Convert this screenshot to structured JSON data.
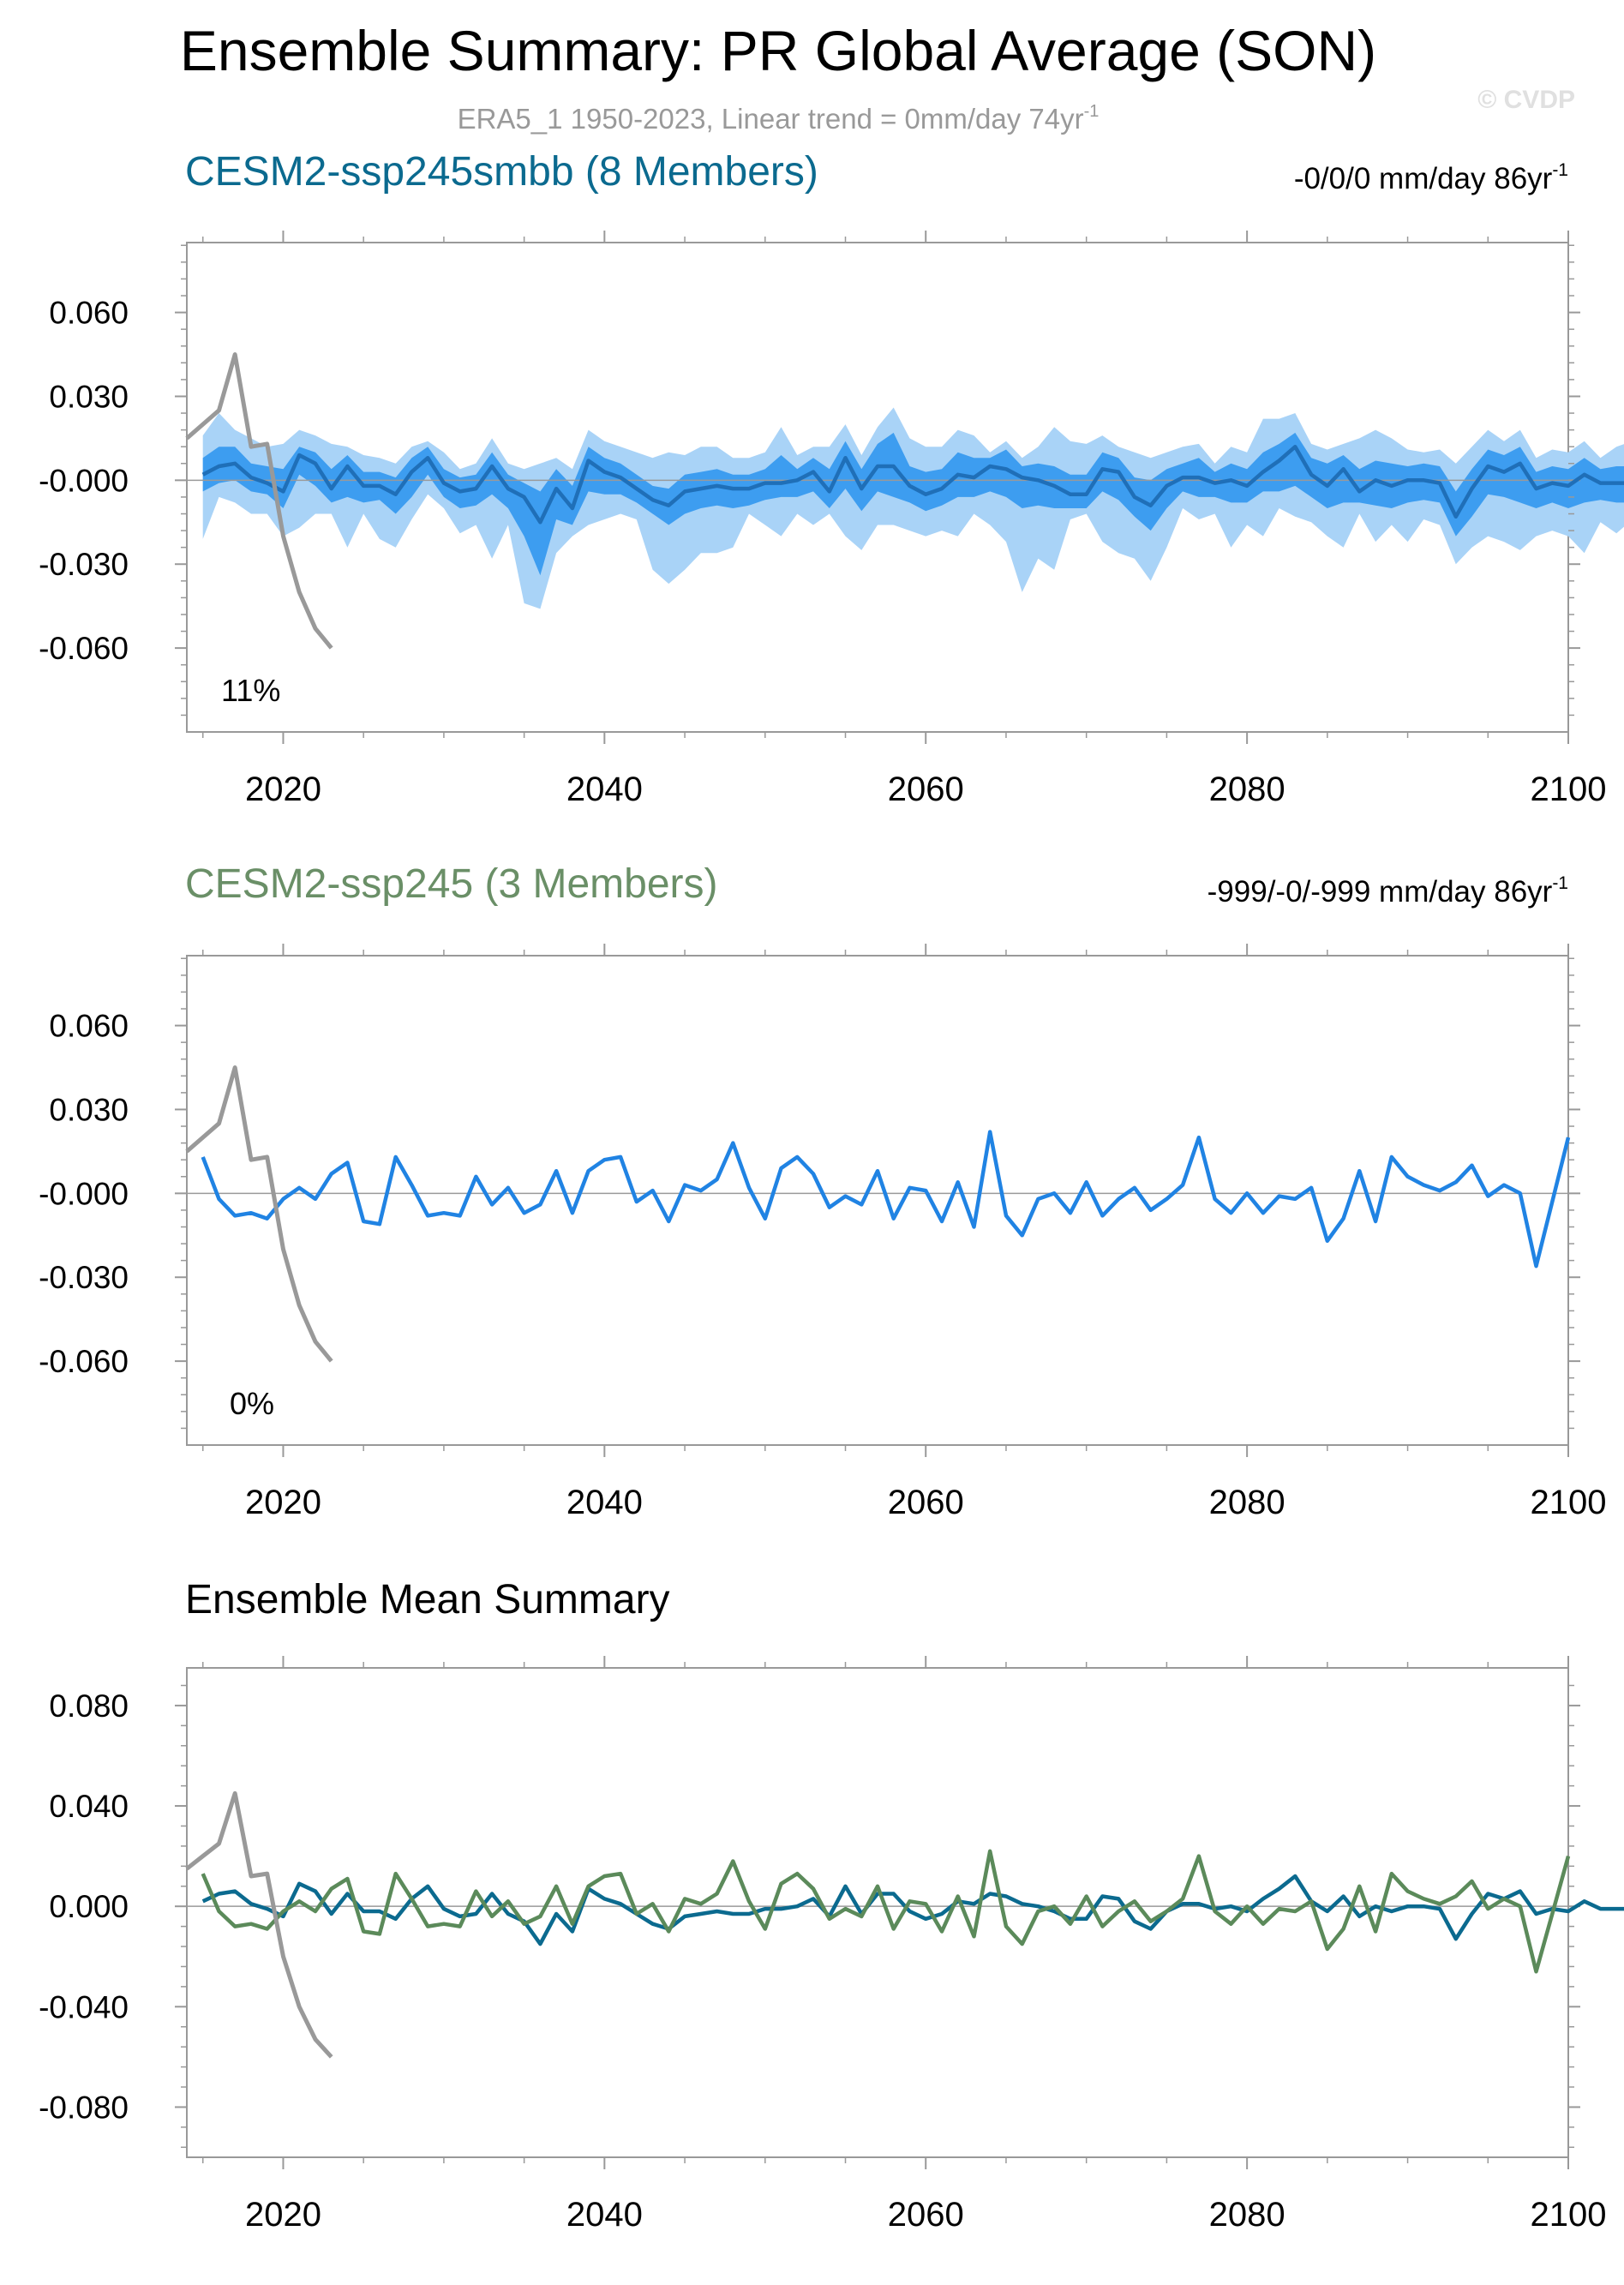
{
  "title": "Ensemble Summary: PR Global Average (SON)",
  "subtitle": "ERA5_1 1950-2023, Linear trend = 0mm/day 74yr",
  "subtitle_sup": "-1",
  "watermark": "© CVDP",
  "colors": {
    "obs": "#999999",
    "smbb": "#0b6a8f",
    "ssp245_title": "#6a8f67",
    "ssp245_line": "#5b8a5a",
    "band_outer": "#a9d3f7",
    "band_inner": "#3d9df0",
    "blue_line": "#2083e3",
    "zero_line": "#9a9a9a"
  },
  "chart_data": [
    {
      "id": "panel1",
      "type": "area",
      "title": "CESM2-ssp245smbb (8 Members)",
      "trend_label": "-0/0/0 mm/day 86yr",
      "trend_sup": "-1",
      "percent_label": "11%",
      "xlim": [
        2014,
        2100
      ],
      "ylim": [
        -0.09,
        0.085
      ],
      "yticks": [
        -0.06,
        -0.03,
        0.0,
        0.03,
        0.06
      ],
      "ytick_labels": [
        "-0.060",
        "-0.030",
        "-0.000",
        "0.030",
        "0.060"
      ],
      "xticks": [
        2020,
        2040,
        2060,
        2080,
        2100
      ],
      "xtick_labels": [
        "2020",
        "2040",
        "2060",
        "2080",
        "2100"
      ],
      "series": [
        {
          "name": "ERA5_1 observations",
          "x": [
            2014,
            2015,
            2016,
            2017,
            2018,
            2019,
            2020,
            2021,
            2022,
            2023
          ],
          "values": [
            0.015,
            0.02,
            0.025,
            0.045,
            0.012,
            0.013,
            -0.02,
            -0.04,
            -0.053,
            -0.06
          ]
        },
        {
          "name": "ensemble mean",
          "values": [
            0.002,
            0.005,
            0.006,
            0.001,
            -0.001,
            -0.004,
            0.009,
            0.006,
            -0.003,
            0.005,
            -0.002,
            -0.002,
            -0.005,
            0.003,
            0.008,
            -0.001,
            -0.004,
            -0.003,
            0.005,
            -0.003,
            -0.006,
            -0.015,
            -0.003,
            -0.01,
            0.007,
            0.003,
            0.001,
            -0.003,
            -0.007,
            -0.009,
            -0.004,
            -0.003,
            -0.002,
            -0.003,
            -0.003,
            -0.001,
            -0.001,
            0.0,
            0.003,
            -0.004,
            0.008,
            -0.003,
            0.005,
            0.005,
            -0.002,
            -0.005,
            -0.003,
            0.002,
            0.001,
            0.005,
            0.004,
            0.001,
            0.0,
            -0.002,
            -0.005,
            -0.005,
            0.004,
            0.003,
            -0.006,
            -0.009,
            -0.002,
            0.001,
            0.001,
            -0.001,
            0.0,
            -0.002,
            0.003,
            0.007,
            0.012,
            0.002,
            -0.002,
            0.004,
            -0.004,
            0.0,
            -0.002,
            0.0,
            0.0,
            -0.001,
            -0.013,
            -0.003,
            0.005,
            0.003,
            0.006,
            -0.003,
            -0.001,
            -0.002,
            0.002,
            -0.001,
            -0.001,
            -0.001,
            -0.002,
            -0.007,
            -0.008,
            -0.006
          ]
        },
        {
          "name": "ensemble min",
          "values": [
            -0.021,
            -0.006,
            -0.008,
            -0.012,
            -0.012,
            -0.02,
            -0.017,
            -0.012,
            -0.012,
            -0.024,
            -0.012,
            -0.021,
            -0.024,
            -0.014,
            -0.005,
            -0.01,
            -0.019,
            -0.016,
            -0.028,
            -0.016,
            -0.044,
            -0.046,
            -0.026,
            -0.02,
            -0.016,
            -0.014,
            -0.012,
            -0.014,
            -0.032,
            -0.037,
            -0.032,
            -0.026,
            -0.026,
            -0.024,
            -0.012,
            -0.016,
            -0.02,
            -0.012,
            -0.016,
            -0.012,
            -0.02,
            -0.025,
            -0.016,
            -0.016,
            -0.018,
            -0.02,
            -0.018,
            -0.02,
            -0.012,
            -0.016,
            -0.022,
            -0.04,
            -0.028,
            -0.032,
            -0.014,
            -0.012,
            -0.022,
            -0.026,
            -0.028,
            -0.036,
            -0.024,
            -0.01,
            -0.014,
            -0.012,
            -0.024,
            -0.016,
            -0.02,
            -0.01,
            -0.013,
            -0.015,
            -0.02,
            -0.024,
            -0.012,
            -0.022,
            -0.016,
            -0.022,
            -0.014,
            -0.016,
            -0.03,
            -0.024,
            -0.02,
            -0.022,
            -0.025,
            -0.02,
            -0.018,
            -0.02,
            -0.026,
            -0.015,
            -0.019,
            -0.014,
            -0.02,
            -0.018,
            -0.019,
            -0.018
          ]
        },
        {
          "name": "ensemble max",
          "values": [
            0.016,
            0.024,
            0.018,
            0.015,
            0.012,
            0.013,
            0.018,
            0.016,
            0.013,
            0.012,
            0.009,
            0.008,
            0.006,
            0.012,
            0.014,
            0.01,
            0.004,
            0.006,
            0.015,
            0.006,
            0.004,
            0.006,
            0.008,
            0.004,
            0.018,
            0.014,
            0.012,
            0.01,
            0.008,
            0.01,
            0.009,
            0.012,
            0.012,
            0.008,
            0.008,
            0.01,
            0.019,
            0.009,
            0.012,
            0.012,
            0.02,
            0.009,
            0.019,
            0.026,
            0.015,
            0.012,
            0.012,
            0.018,
            0.016,
            0.01,
            0.014,
            0.008,
            0.012,
            0.019,
            0.014,
            0.013,
            0.016,
            0.012,
            0.01,
            0.008,
            0.01,
            0.012,
            0.013,
            0.006,
            0.012,
            0.01,
            0.022,
            0.022,
            0.024,
            0.013,
            0.011,
            0.013,
            0.015,
            0.018,
            0.015,
            0.011,
            0.01,
            0.011,
            0.006,
            0.012,
            0.018,
            0.014,
            0.018,
            0.008,
            0.011,
            0.01,
            0.014,
            0.008,
            0.012,
            0.014,
            0.012,
            0.01,
            0.008,
            0.016
          ]
        },
        {
          "name": "ensemble 25th",
          "values": [
            -0.004,
            -0.001,
            0.0,
            -0.004,
            -0.005,
            -0.01,
            0.002,
            -0.002,
            -0.008,
            -0.006,
            -0.008,
            -0.007,
            -0.012,
            -0.006,
            0.002,
            -0.006,
            -0.01,
            -0.009,
            -0.005,
            -0.01,
            -0.02,
            -0.034,
            -0.014,
            -0.016,
            -0.004,
            -0.005,
            -0.005,
            -0.008,
            -0.012,
            -0.016,
            -0.012,
            -0.01,
            -0.009,
            -0.01,
            -0.009,
            -0.007,
            -0.006,
            -0.006,
            -0.004,
            -0.01,
            -0.003,
            -0.011,
            -0.004,
            -0.006,
            -0.008,
            -0.011,
            -0.009,
            -0.006,
            -0.006,
            -0.004,
            -0.006,
            -0.01,
            -0.009,
            -0.01,
            -0.01,
            -0.01,
            -0.004,
            -0.007,
            -0.013,
            -0.018,
            -0.01,
            -0.004,
            -0.006,
            -0.006,
            -0.008,
            -0.008,
            -0.004,
            -0.004,
            -0.002,
            -0.006,
            -0.01,
            -0.008,
            -0.008,
            -0.009,
            -0.01,
            -0.008,
            -0.007,
            -0.008,
            -0.02,
            -0.013,
            -0.005,
            -0.006,
            -0.008,
            -0.01,
            -0.008,
            -0.01,
            -0.008,
            -0.007,
            -0.008,
            -0.008,
            -0.009,
            -0.012,
            -0.012,
            -0.012
          ]
        },
        {
          "name": "ensemble 75th",
          "values": [
            0.008,
            0.012,
            0.012,
            0.006,
            0.005,
            0.004,
            0.012,
            0.01,
            0.004,
            0.009,
            0.003,
            0.003,
            0.001,
            0.008,
            0.012,
            0.004,
            0.001,
            0.002,
            0.01,
            0.002,
            -0.001,
            -0.004,
            0.004,
            -0.002,
            0.012,
            0.008,
            0.006,
            0.002,
            -0.002,
            -0.003,
            0.002,
            0.003,
            0.004,
            0.002,
            0.002,
            0.004,
            0.009,
            0.004,
            0.008,
            0.004,
            0.014,
            0.004,
            0.013,
            0.017,
            0.005,
            0.003,
            0.004,
            0.01,
            0.008,
            0.008,
            0.011,
            0.005,
            0.006,
            0.005,
            0.002,
            0.002,
            0.01,
            0.008,
            0.001,
            0.0,
            0.004,
            0.006,
            0.008,
            0.003,
            0.006,
            0.004,
            0.01,
            0.013,
            0.017,
            0.008,
            0.006,
            0.009,
            0.004,
            0.007,
            0.006,
            0.005,
            0.006,
            0.005,
            -0.004,
            0.004,
            0.011,
            0.009,
            0.012,
            0.003,
            0.005,
            0.004,
            0.008,
            0.004,
            0.005,
            0.005,
            0.004,
            -0.001,
            -0.002,
            0.001
          ]
        }
      ]
    },
    {
      "id": "panel2",
      "type": "line",
      "title": "CESM2-ssp245 (3 Members)",
      "trend_label": "-999/-0/-999 mm/day 86yr",
      "trend_sup": "-1",
      "percent_label": "0%",
      "xlim": [
        2014,
        2100
      ],
      "ylim": [
        -0.09,
        0.085
      ],
      "yticks": [
        -0.06,
        -0.03,
        0.0,
        0.03,
        0.06
      ],
      "ytick_labels": [
        "-0.060",
        "-0.030",
        "-0.000",
        "0.030",
        "0.060"
      ],
      "xticks": [
        2020,
        2040,
        2060,
        2080,
        2100
      ],
      "xtick_labels": [
        "2020",
        "2040",
        "2060",
        "2080",
        "2100"
      ],
      "series": [
        {
          "name": "ERA5_1 observations",
          "x": [
            2014,
            2015,
            2016,
            2017,
            2018,
            2019,
            2020,
            2021,
            2022,
            2023
          ],
          "values": [
            0.015,
            0.02,
            0.025,
            0.045,
            0.012,
            0.013,
            -0.02,
            -0.04,
            -0.053,
            -0.06
          ]
        },
        {
          "name": "ensemble mean",
          "values": [
            0.013,
            -0.002,
            -0.008,
            -0.007,
            -0.009,
            -0.002,
            0.002,
            -0.002,
            0.007,
            0.011,
            -0.01,
            -0.011,
            0.013,
            0.003,
            -0.008,
            -0.007,
            -0.008,
            0.006,
            -0.004,
            0.002,
            -0.007,
            -0.004,
            0.008,
            -0.007,
            0.008,
            0.012,
            0.013,
            -0.003,
            0.001,
            -0.01,
            0.003,
            0.001,
            0.005,
            0.018,
            0.002,
            -0.009,
            0.009,
            0.013,
            0.007,
            -0.005,
            -0.001,
            -0.004,
            0.008,
            -0.009,
            0.002,
            0.001,
            -0.01,
            0.004,
            -0.012,
            0.022,
            -0.008,
            -0.015,
            -0.002,
            0.0,
            -0.007,
            0.004,
            -0.008,
            -0.002,
            0.002,
            -0.006,
            -0.002,
            0.003,
            0.02,
            -0.002,
            -0.007,
            0.0,
            -0.007,
            -0.001,
            -0.002,
            0.002,
            -0.017,
            -0.009,
            0.008,
            -0.01,
            0.013,
            0.006,
            0.003,
            0.001,
            0.004,
            0.01,
            -0.001,
            0.003,
            0.0,
            -0.026,
            -0.003,
            0.02
          ]
        }
      ]
    },
    {
      "id": "panel3",
      "type": "line",
      "title": "Ensemble Mean Summary",
      "xlim": [
        2014,
        2100
      ],
      "ylim": [
        -0.1,
        0.095
      ],
      "yticks": [
        -0.08,
        -0.04,
        0.0,
        0.04,
        0.08
      ],
      "ytick_labels": [
        "-0.080",
        "-0.040",
        "0.000",
        "0.040",
        "0.080"
      ],
      "xticks": [
        2020,
        2040,
        2060,
        2080,
        2100
      ],
      "xtick_labels": [
        "2020",
        "2040",
        "2060",
        "2080",
        "2100"
      ],
      "series": [
        {
          "name": "ERA5_1 observations",
          "x": [
            2014,
            2015,
            2016,
            2017,
            2018,
            2019,
            2020,
            2021,
            2022,
            2023
          ],
          "values": [
            0.015,
            0.02,
            0.025,
            0.045,
            0.012,
            0.013,
            -0.02,
            -0.04,
            -0.053,
            -0.06
          ]
        },
        {
          "name": "CESM2-ssp245smbb mean",
          "ref": "panel1.ensemble mean"
        },
        {
          "name": "CESM2-ssp245 mean",
          "ref": "panel2.ensemble mean"
        }
      ]
    }
  ]
}
